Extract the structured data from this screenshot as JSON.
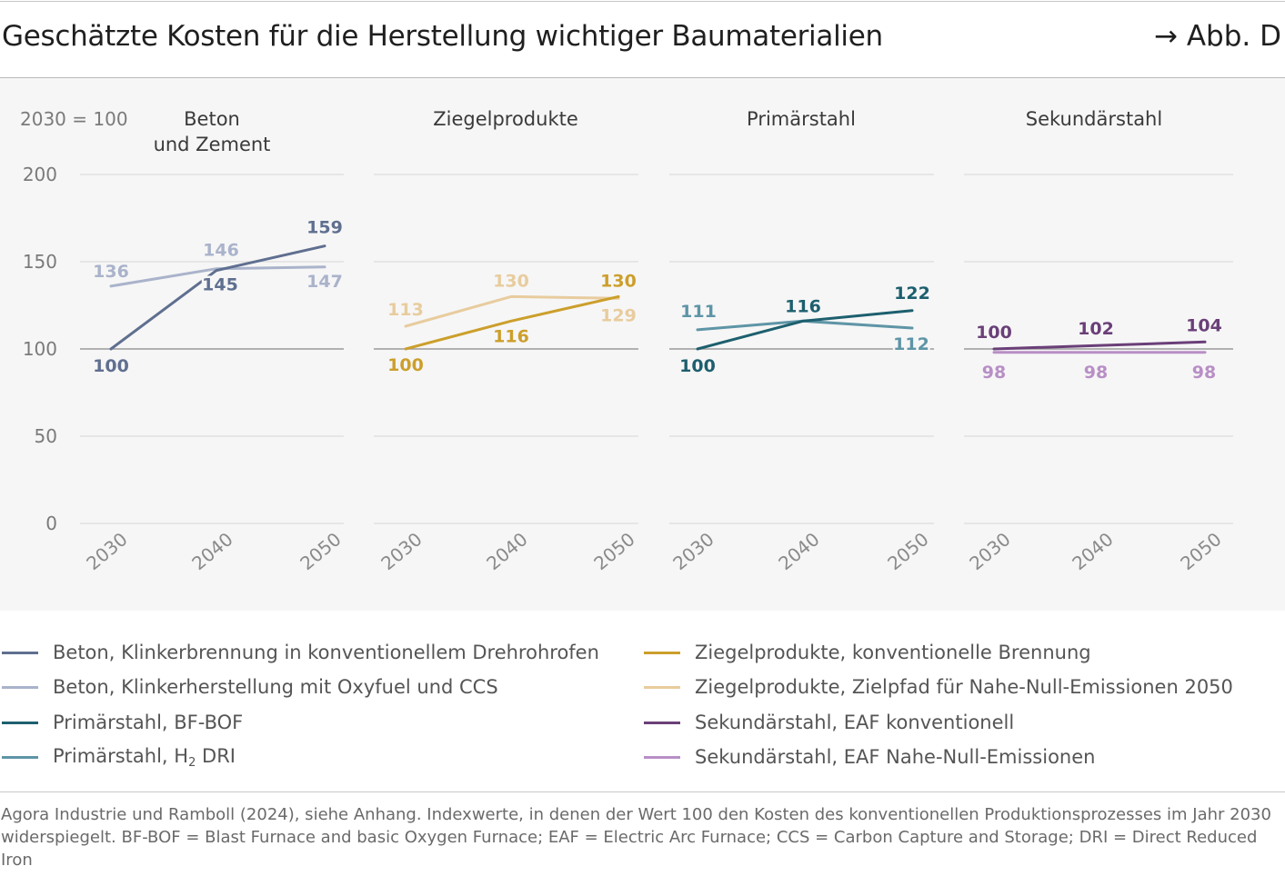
{
  "header": {
    "title": "Geschätzte Kosten für die Herstellung wichtiger Baumaterialien",
    "figure_ref": "→ Abb. D"
  },
  "chart_data": {
    "type": "line",
    "index_label": "2030 = 100",
    "y_ticks": [
      "200",
      "150",
      "100",
      "50",
      "0"
    ],
    "ylim": [
      0,
      200
    ],
    "x": [
      "2030",
      "2040",
      "2050"
    ],
    "reference_line": 100,
    "panels": [
      {
        "title": [
          "Beton",
          "und Zement"
        ],
        "series": [
          {
            "key": "beton_konv",
            "values": [
              100,
              145,
              159
            ],
            "labels": [
              "100",
              "145",
              "159"
            ],
            "color": "#5f6f90",
            "bold": true
          },
          {
            "key": "beton_ccs",
            "values": [
              136,
              146,
              147
            ],
            "labels": [
              "136",
              "146",
              "147"
            ],
            "color": "#aab3cb",
            "bold": true
          }
        ]
      },
      {
        "title": [
          "Ziegelprodukte"
        ],
        "series": [
          {
            "key": "ziegel_konv",
            "values": [
              100,
              116,
              130
            ],
            "labels": [
              "100",
              "116",
              "130"
            ],
            "color": "#cc9f2c",
            "bold": true
          },
          {
            "key": "ziegel_null",
            "values": [
              113,
              130,
              129
            ],
            "labels": [
              "113",
              "130",
              "129"
            ],
            "color": "#e8cc9e",
            "bold": true
          }
        ]
      },
      {
        "title": [
          "Primärstahl"
        ],
        "series": [
          {
            "key": "primaer_bfbof",
            "values": [
              100,
              116,
              122
            ],
            "labels": [
              "100",
              "116",
              "122"
            ],
            "color": "#1d5f6e",
            "bold": true
          },
          {
            "key": "primaer_h2",
            "values": [
              111,
              116,
              112
            ],
            "labels": [
              "111",
              "",
              "112"
            ],
            "color": "#5e95a6",
            "bold": true
          }
        ]
      },
      {
        "title": [
          "Sekundärstahl"
        ],
        "series": [
          {
            "key": "sekundaer_konv",
            "values": [
              100,
              102,
              104
            ],
            "labels": [
              "100",
              "102",
              "104"
            ],
            "color": "#6a3f78",
            "bold": true
          },
          {
            "key": "sekundaer_null",
            "values": [
              98,
              98,
              98
            ],
            "labels": [
              "98",
              "98",
              "98"
            ],
            "color": "#b88fc6",
            "bold": true
          }
        ]
      }
    ]
  },
  "legend": {
    "items": [
      {
        "label": "Beton, Klinkerbrennung in konventionellem Drehrohrofen",
        "color": "#5f6f90"
      },
      {
        "label": "Ziegelprodukte, konventionelle Brennung",
        "color": "#cc9f2c"
      },
      {
        "label": "Beton, Klinkerherstellung mit Oxyfuel und CCS",
        "color": "#aab3cb"
      },
      {
        "label": "Ziegelprodukte, Zielpfad für Nahe-Null-Emissionen 2050",
        "color": "#e8cc9e"
      },
      {
        "label": "Primärstahl, BF-BOF",
        "color": "#1d5f6e"
      },
      {
        "label": "Sekundärstahl, EAF konventionell",
        "color": "#6a3f78"
      },
      {
        "label_prefix": "Primärstahl, H",
        "label_sub": "2",
        "label_suffix": " DRI",
        "color": "#5e95a6"
      },
      {
        "label": "Sekundärstahl, EAF Nahe-Null-Emissionen",
        "color": "#b88fc6"
      }
    ]
  },
  "footer": {
    "source": "Agora Industrie und Ramboll (2024), siehe Anhang. Indexwerte, in denen der Wert 100 den Kosten des konventionellen Produktionsprozesses im Jahr 2030 widerspiegelt. BF-BOF = Blast Furnace and basic Oxygen Furnace; EAF = Electric Arc Furnace; CCS = Carbon Capture and Storage; DRI = Direct Reduced Iron"
  }
}
